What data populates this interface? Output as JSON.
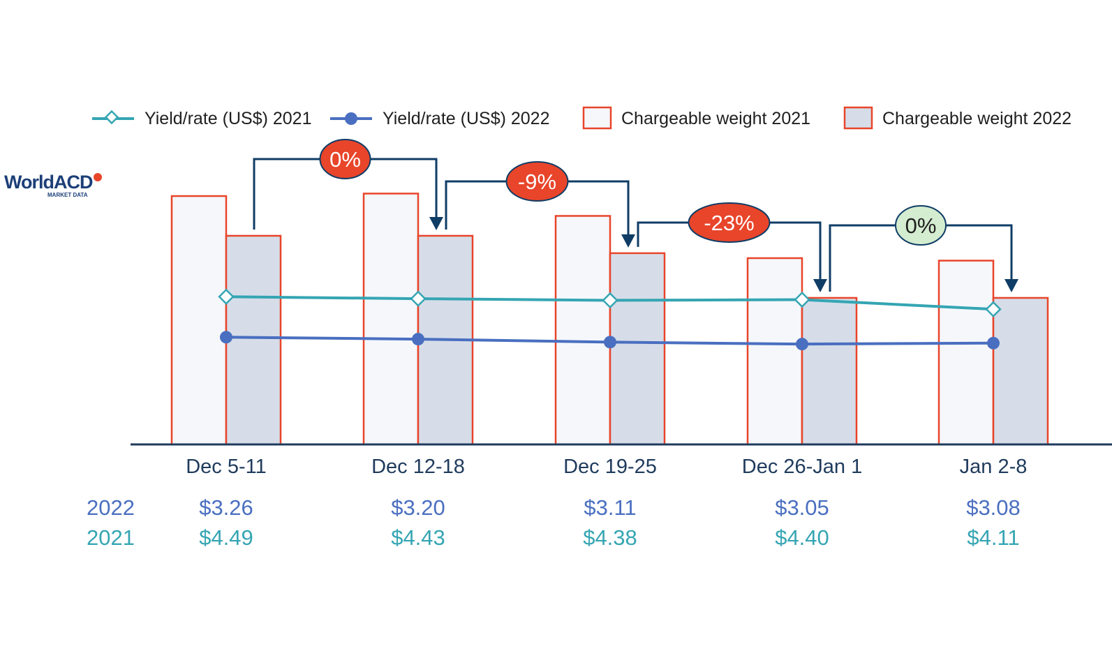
{
  "logo": {
    "name": "WorldACD",
    "tagline": "MARKET DATA"
  },
  "legend": [
    {
      "key": "yield2021",
      "label": "Yield/rate (US$) 2021"
    },
    {
      "key": "yield2022",
      "label": "Yield/rate (US$) 2022"
    },
    {
      "key": "weight2021",
      "label": "Chargeable weight 2021"
    },
    {
      "key": "weight2022",
      "label": "Chargeable weight 2022"
    }
  ],
  "colors": {
    "bar_border": "#e8452a",
    "bar_fill_2021": "#f5f7fb",
    "bar_fill_2022": "#d6dde9",
    "line_2021": "#35a5b3",
    "line_2022": "#4a6fc0",
    "arrow": "#0f3d66",
    "axis": "#1f3b5c",
    "callout_negative": "#e8452a",
    "callout_neutral": "#d4ecd0"
  },
  "chart_data": {
    "type": "bar",
    "categories": [
      "Dec 5-11",
      "Dec 12-18",
      "Dec 19-25",
      "Dec 26-Jan 1",
      "Jan 2-8"
    ],
    "series": [
      {
        "name": "Chargeable weight 2021",
        "type": "bar",
        "values": [
          100,
          101,
          92,
          75,
          74
        ]
      },
      {
        "name": "Chargeable weight 2022",
        "type": "bar",
        "values": [
          84,
          84,
          77,
          59,
          59
        ]
      },
      {
        "name": "Yield/rate (US$) 2021",
        "type": "line",
        "values": [
          4.49,
          4.43,
          4.38,
          4.4,
          4.11
        ]
      },
      {
        "name": "Yield/rate (US$) 2022",
        "type": "line",
        "values": [
          3.26,
          3.2,
          3.11,
          3.05,
          3.08
        ]
      }
    ],
    "ylim": [
      0,
      100
    ],
    "yield_scale": [
      0,
      7.55
    ],
    "grid": false,
    "legend_position": "top",
    "callouts": [
      {
        "label": "0%",
        "from": 0,
        "to": 1,
        "style": "negative"
      },
      {
        "label": "-9%",
        "from": 1,
        "to": 2,
        "style": "negative"
      },
      {
        "label": "-23%",
        "from": 2,
        "to": 3,
        "style": "negative"
      },
      {
        "label": "0%",
        "from": 3,
        "to": 4,
        "style": "neutral"
      }
    ]
  },
  "value_rows": [
    {
      "year": "2022",
      "values": [
        "$3.26",
        "$3.20",
        "$3.11",
        "$3.05",
        "$3.08"
      ]
    },
    {
      "year": "2021",
      "values": [
        "$4.49",
        "$4.43",
        "$4.38",
        "$4.40",
        "$4.11"
      ]
    }
  ]
}
